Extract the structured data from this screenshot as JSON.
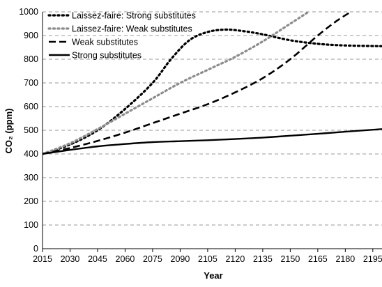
{
  "chart_data": {
    "type": "line",
    "xlabel": "Year",
    "ylabel": "CO₂ (ppm)",
    "xlim": [
      2015,
      2200
    ],
    "ylim": [
      0,
      1000
    ],
    "xticks": [
      "2015",
      "2030",
      "2045",
      "2060",
      "2075",
      "2090",
      "2105",
      "2120",
      "2135",
      "2150",
      "2165",
      "2180",
      "2195"
    ],
    "yticks": [
      "0",
      "100",
      "200",
      "300",
      "400",
      "500",
      "600",
      "700",
      "800",
      "900",
      "1000"
    ],
    "grid": "horizontal dashed",
    "legend_position": "top-left",
    "series": [
      {
        "name": "Laissez-faire: Strong substitutes",
        "style": "dotted",
        "color": "#000000",
        "x": [
          2015,
          2030,
          2045,
          2060,
          2075,
          2085,
          2095,
          2105,
          2115,
          2125,
          2135,
          2150,
          2165,
          2180,
          2200
        ],
        "y": [
          400,
          440,
          500,
          590,
          700,
          800,
          880,
          915,
          925,
          918,
          905,
          880,
          865,
          858,
          855
        ]
      },
      {
        "name": "Laissez-faire: Weak substitutes",
        "style": "dotted",
        "color": "#8c8c8c",
        "x": [
          2015,
          2030,
          2045,
          2060,
          2075,
          2090,
          2105,
          2120,
          2135,
          2150,
          2160
        ],
        "y": [
          400,
          445,
          505,
          570,
          635,
          700,
          755,
          810,
          875,
          950,
          1000
        ]
      },
      {
        "name": "Weak substitutes",
        "style": "dashed",
        "color": "#000000",
        "x": [
          2015,
          2030,
          2045,
          2060,
          2075,
          2090,
          2105,
          2120,
          2135,
          2150,
          2165,
          2175,
          2183
        ],
        "y": [
          400,
          425,
          455,
          490,
          530,
          570,
          610,
          660,
          720,
          800,
          900,
          960,
          1000
        ]
      },
      {
        "name": "Strong substitutes",
        "style": "solid",
        "color": "#000000",
        "x": [
          2015,
          2030,
          2045,
          2060,
          2075,
          2090,
          2105,
          2120,
          2135,
          2150,
          2165,
          2180,
          2200
        ],
        "y": [
          400,
          417,
          432,
          442,
          450,
          454,
          458,
          463,
          469,
          477,
          485,
          494,
          505
        ]
      }
    ]
  }
}
